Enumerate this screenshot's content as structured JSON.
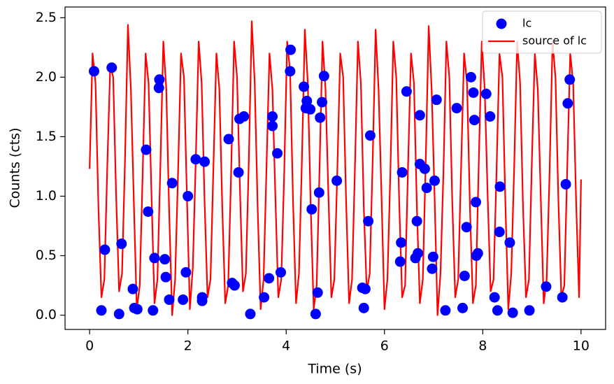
{
  "chart_data": {
    "type": "scatter",
    "x_label": "Time (s)",
    "y_label": "Counts (cts)",
    "xlim": [
      -0.5,
      10.5
    ],
    "ylim": [
      -0.12,
      2.59
    ],
    "xticks": [
      0,
      2,
      4,
      6,
      8,
      10
    ],
    "yticks": [
      {
        "value": 0,
        "label": "0.0"
      },
      0.5,
      {
        "value": 1,
        "label": "1.0"
      },
      1.5,
      {
        "value": 2,
        "label": "2.0"
      },
      2.5
    ],
    "legend": "upper right",
    "series": [
      {
        "name": "lc",
        "type": "scatter",
        "color": "#0000ff",
        "x": [
          0.09,
          0.24,
          0.31,
          0.45,
          0.6,
          0.65,
          0.88,
          0.91,
          0.97,
          1.15,
          1.19,
          1.29,
          1.32,
          1.42,
          1.41,
          1.53,
          1.55,
          1.62,
          1.68,
          1.9,
          1.96,
          2,
          2.16,
          2.29,
          2.29,
          2.34,
          2.83,
          2.9,
          2.95,
          3.03,
          3.05,
          3.14,
          3.27,
          3.55,
          3.65,
          3.72,
          3.72,
          3.82,
          3.89,
          4.08,
          4.09,
          4.36,
          4.42,
          4.4,
          4.49,
          4.52,
          4.6,
          4.64,
          4.67,
          4.69,
          4.73,
          4.77,
          5.03,
          5.55,
          5.61,
          5.58,
          5.67,
          5.71,
          6.32,
          6.34,
          6.36,
          6.45,
          6.63,
          6.68,
          6.66,
          6.72,
          6.72,
          6.82,
          6.86,
          6.97,
          6.99,
          7.02,
          7.06,
          7.24,
          7.47,
          7.59,
          7.63,
          7.67,
          7.76,
          7.81,
          7.83,
          7.86,
          7.87,
          7.9,
          8.07,
          8.15,
          8.24,
          8.3,
          8.35,
          8.34,
          8.55,
          8.61,
          8.95,
          9.29,
          9.62,
          9.69,
          9.73,
          9.77
        ],
        "values": [
          2.05,
          0.04,
          0.55,
          2.08,
          0.01,
          0.6,
          0.22,
          0.06,
          0.05,
          1.39,
          0.87,
          0.04,
          0.48,
          1.98,
          1.91,
          0.47,
          0.32,
          0.13,
          1.11,
          0.13,
          0.36,
          1,
          1.31,
          0.15,
          0.12,
          1.29,
          1.48,
          0.27,
          0.25,
          1.2,
          1.65,
          1.67,
          0.01,
          0.15,
          0.31,
          1.67,
          1.59,
          1.36,
          0.36,
          2.05,
          2.23,
          1.92,
          1.8,
          1.74,
          1.73,
          0.89,
          0.01,
          0.19,
          1.03,
          1.66,
          1.79,
          2.01,
          1.13,
          0.23,
          0.22,
          0.06,
          0.79,
          1.51,
          0.45,
          0.61,
          1.2,
          1.88,
          0.48,
          0.52,
          0.79,
          1.68,
          1.27,
          1.23,
          1.07,
          0.39,
          0.49,
          1.13,
          1.81,
          0.04,
          1.74,
          0.06,
          0.33,
          0.74,
          2,
          1.87,
          1.64,
          0.95,
          0.5,
          0.52,
          1.86,
          1.67,
          0.15,
          0.04,
          1.08,
          0.7,
          0.61,
          0.02,
          0.04,
          0.24,
          0.15,
          1.1,
          1.78,
          1.98
        ]
      },
      {
        "name": "source of lc",
        "type": "line",
        "color": "#ff0000",
        "x": [
          0,
          0.06,
          0.12,
          0.18,
          0.24,
          0.3,
          0.36,
          0.42,
          0.48,
          0.54,
          0.6,
          0.66,
          0.72,
          0.78,
          0.84,
          0.9,
          0.96,
          1.02,
          1.08,
          1.14,
          1.2,
          1.26,
          1.32,
          1.38,
          1.44,
          1.5,
          1.56,
          1.62,
          1.68,
          1.74,
          1.8,
          1.86,
          1.92,
          1.98,
          2.04,
          2.1,
          2.16,
          2.22,
          2.28,
          2.34,
          2.4,
          2.46,
          2.52,
          2.58,
          2.64,
          2.7,
          2.76,
          2.82,
          2.88,
          2.94,
          3,
          3.06,
          3.12,
          3.18,
          3.24,
          3.3,
          3.36,
          3.42,
          3.48,
          3.54,
          3.6,
          3.66,
          3.72,
          3.78,
          3.84,
          3.9,
          3.96,
          4.02,
          4.08,
          4.14,
          4.2,
          4.26,
          4.32,
          4.38,
          4.44,
          4.5,
          4.56,
          4.62,
          4.68,
          4.74,
          4.8,
          4.86,
          4.92,
          4.98,
          5.04,
          5.1,
          5.16,
          5.22,
          5.28,
          5.34,
          5.4,
          5.46,
          5.52,
          5.58,
          5.64,
          5.7,
          5.76,
          5.82,
          5.88,
          5.94,
          6,
          6.06,
          6.12,
          6.18,
          6.24,
          6.3,
          6.36,
          6.42,
          6.48,
          6.54,
          6.6,
          6.66,
          6.72,
          6.78,
          6.84,
          6.9,
          6.96,
          7.02,
          7.08,
          7.14,
          7.2,
          7.26,
          7.32,
          7.38,
          7.44,
          7.5,
          7.56,
          7.62,
          7.68,
          7.74,
          7.8,
          7.86,
          7.92,
          7.98,
          8.04,
          8.1,
          8.16,
          8.22,
          8.28,
          8.34,
          8.4,
          8.46,
          8.52,
          8.58,
          8.64,
          8.7,
          8.76,
          8.82,
          8.88,
          8.94,
          9,
          9.06,
          9.12,
          9.18,
          9.24,
          9.3,
          9.36,
          9.42,
          9.48,
          9.54,
          9.6,
          9.66,
          9.72,
          9.78,
          9.84,
          9.9,
          9.96,
          10
        ],
        "values": [
          1.23,
          2.2,
          1.95,
          0.9,
          0.15,
          0.3,
          1.25,
          2.1,
          2.0,
          1.0,
          0.2,
          0.35,
          1.3,
          2.44,
          1.9,
          0.95,
          0.05,
          0.25,
          1.2,
          2.2,
          1.95,
          1.0,
          0.1,
          0.3,
          1.25,
          2.3,
          1.9,
          0.85,
          0.0,
          0.3,
          1.2,
          2.2,
          2.0,
          1.0,
          0.05,
          0.4,
          1.3,
          2.3,
          1.95,
          0.95,
          0.15,
          0.3,
          1.25,
          2.2,
          1.9,
          0.9,
          0.1,
          0.25,
          1.2,
          2.3,
          2.0,
          1.05,
          0.2,
          0.35,
          1.3,
          2.47,
          1.95,
          0.9,
          0.05,
          0.3,
          1.25,
          2.2,
          1.9,
          1.0,
          0.15,
          0.3,
          1.2,
          2.3,
          2.05,
          0.95,
          0.1,
          0.35,
          1.3,
          2.4,
          1.95,
          0.9,
          0.05,
          0.25,
          1.25,
          2.3,
          1.9,
          1.0,
          0.15,
          0.3,
          1.2,
          2.2,
          2.0,
          0.95,
          0.1,
          0.3,
          1.25,
          2.3,
          1.95,
          0.9,
          0.2,
          0.35,
          1.3,
          2.4,
          1.9,
          1.0,
          0.05,
          0.3,
          1.2,
          2.3,
          2.0,
          0.95,
          0.15,
          0.25,
          1.25,
          2.2,
          1.95,
          0.9,
          0.1,
          0.3,
          1.3,
          2.43,
          1.9,
          1.0,
          0.0,
          0.35,
          1.2,
          2.3,
          2.0,
          0.95,
          0.15,
          0.3,
          1.25,
          2.2,
          1.95,
          0.9,
          0.1,
          0.25,
          1.3,
          2.3,
          1.9,
          1.0,
          0.2,
          0.3,
          1.2,
          2.2,
          2.0,
          0.95,
          0.05,
          0.35,
          1.25,
          2.3,
          1.95,
          0.9,
          0.15,
          0.3,
          1.3,
          2.2,
          1.9,
          1.0,
          0.1,
          0.3,
          1.2,
          2.3,
          2.0,
          0.95,
          0.15,
          0.25,
          1.25,
          2.2,
          1.95,
          0.95,
          0.15,
          1.14
        ]
      }
    ]
  }
}
